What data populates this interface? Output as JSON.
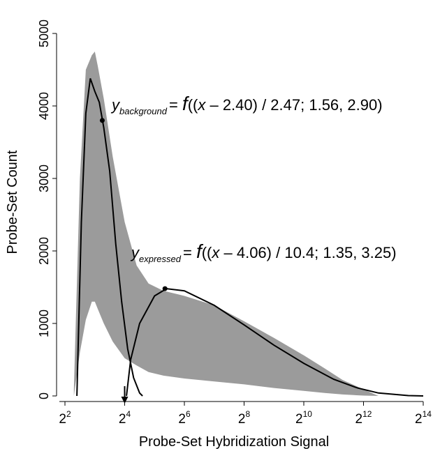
{
  "chart_data": {
    "type": "area",
    "xlabel": "Probe-Set Hybridization Signal",
    "ylabel": "Probe-Set Count",
    "x_scale": "log2",
    "xlim": [
      2,
      14
    ],
    "ylim": [
      0,
      5000
    ],
    "x_ticks": [
      {
        "base": "2",
        "exp": "2",
        "value": 2
      },
      {
        "base": "2",
        "exp": "4",
        "value": 4
      },
      {
        "base": "2",
        "exp": "6",
        "value": 6
      },
      {
        "base": "2",
        "exp": "8",
        "value": 8
      },
      {
        "base": "2",
        "exp": "10",
        "value": 10
      },
      {
        "base": "2",
        "exp": "12",
        "value": 12
      },
      {
        "base": "2",
        "exp": "14",
        "value": 14
      }
    ],
    "y_ticks": [
      {
        "label": "0",
        "value": 0
      },
      {
        "label": "1000",
        "value": 1000
      },
      {
        "label": "2000",
        "value": 2000
      },
      {
        "label": "3000",
        "value": 3000
      },
      {
        "label": "4000",
        "value": 4000
      },
      {
        "label": "5000",
        "value": 5000
      }
    ],
    "histogram": {
      "color": "#9b9b9b",
      "x": [
        2.3,
        2.5,
        2.7,
        2.9,
        3.0,
        3.1,
        3.3,
        3.6,
        4.0,
        4.4,
        4.8,
        5.3,
        6.0,
        7.0,
        8.0,
        9.0,
        10.0,
        10.7,
        11.3,
        12.0,
        12.5
      ],
      "upper": [
        100,
        3000,
        4500,
        4700,
        4750,
        4550,
        4100,
        3300,
        2400,
        1800,
        1550,
        1450,
        1380,
        1250,
        1030,
        800,
        560,
        380,
        220,
        90,
        0
      ],
      "lower": [
        0,
        600,
        1050,
        1300,
        1300,
        1200,
        1000,
        750,
        520,
        420,
        330,
        280,
        240,
        200,
        160,
        110,
        70,
        40,
        20,
        5,
        0
      ]
    },
    "series": [
      {
        "color": "#000000",
        "x": [
          2.4,
          2.55,
          2.7,
          2.85,
          3.0,
          3.15,
          3.3,
          3.5,
          3.7,
          3.9,
          4.1,
          4.3,
          4.5,
          4.6
        ],
        "y": [
          0,
          2400,
          3900,
          4380,
          4200,
          4050,
          3700,
          3100,
          2100,
          1300,
          650,
          250,
          40,
          0
        ],
        "marker": {
          "x": 3.25,
          "y": 3800
        }
      },
      {
        "color": "#000000",
        "x": [
          4.06,
          4.2,
          4.5,
          5.0,
          5.4,
          6.0,
          7.0,
          8.0,
          9.0,
          10.0,
          11.0,
          11.8,
          12.5,
          13.5,
          14.0
        ],
        "y": [
          0,
          500,
          1000,
          1380,
          1480,
          1450,
          1250,
          980,
          700,
          450,
          230,
          110,
          40,
          5,
          0
        ],
        "marker": {
          "x": 5.35,
          "y": 1480
        }
      }
    ],
    "threshold_arrow": {
      "x": 4.0
    },
    "annotations": [
      {
        "main": "y",
        "sub": "background",
        "formula": "= f((x – 2.40) / 2.47; 1.56, 2.90)",
        "eq": "= ",
        "f": "f",
        "open": "((",
        "var": "x",
        "rest": " – 2.40) / 2.47; 1.56, 2.90)"
      },
      {
        "main": "y",
        "sub": "expressed",
        "formula": "= f((x – 4.06) / 10.4; 1.35, 3.25)",
        "eq": "= ",
        "f": "f",
        "open": "((",
        "var": "x",
        "rest": " – 4.06) / 10.4; 1.35, 3.25)"
      }
    ]
  }
}
